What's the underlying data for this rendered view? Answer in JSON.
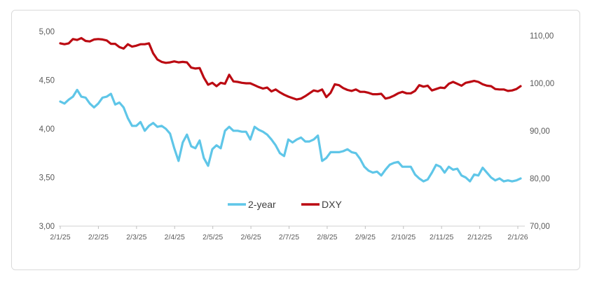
{
  "card": {
    "background": "#ffffff",
    "border_color": "#dadada"
  },
  "legend": {
    "items": [
      {
        "label": "2-year",
        "color": "#5fc6e8"
      },
      {
        "label": "DXY",
        "color": "#bb0a12"
      }
    ]
  },
  "chart_data": {
    "type": "line",
    "title": "",
    "xlabel": "",
    "ylabel_left": "",
    "ylabel_right": "",
    "grid": false,
    "legend_position": "bottom-inside",
    "x_tick_labels": [
      "2/1/25",
      "2/2/25",
      "2/3/25",
      "2/4/25",
      "2/5/25",
      "2/6/25",
      "2/7/25",
      "2/8/25",
      "2/9/25",
      "2/10/25",
      "2/11/25",
      "2/12/25",
      "2/1/26"
    ],
    "left_axis": {
      "min": 3.0,
      "max": 5.0,
      "tick_labels": [
        "3,00",
        "3,50",
        "4,00",
        "4,50",
        "5,00"
      ],
      "tick_values": [
        3.0,
        3.5,
        4.0,
        4.5,
        5.0
      ]
    },
    "right_axis": {
      "min": 70.0,
      "max": 110.0,
      "tick_labels": [
        "70,00",
        "80,00",
        "90,00",
        "100,00",
        "110,00"
      ],
      "tick_values": [
        70,
        80,
        90,
        100,
        110
      ]
    },
    "axis_color": "#d9d9d9",
    "tick_color": "#bfbfbf",
    "label_color": "#595959",
    "series": [
      {
        "name": "2-year",
        "axis": "left",
        "color": "#5fc6e8",
        "values": [
          4.28,
          4.26,
          4.3,
          4.33,
          4.4,
          4.33,
          4.32,
          4.26,
          4.22,
          4.26,
          4.32,
          4.33,
          4.36,
          4.25,
          4.27,
          4.22,
          4.11,
          4.03,
          4.03,
          4.07,
          3.98,
          4.03,
          4.06,
          4.02,
          4.03,
          4.0,
          3.95,
          3.8,
          3.67,
          3.86,
          3.94,
          3.82,
          3.8,
          3.88,
          3.7,
          3.62,
          3.79,
          3.83,
          3.8,
          3.98,
          4.02,
          3.98,
          3.98,
          3.97,
          3.97,
          3.89,
          4.02,
          3.99,
          3.97,
          3.94,
          3.89,
          3.83,
          3.75,
          3.72,
          3.89,
          3.86,
          3.89,
          3.91,
          3.87,
          3.87,
          3.89,
          3.93,
          3.67,
          3.7,
          3.76,
          3.76,
          3.76,
          3.77,
          3.79,
          3.76,
          3.75,
          3.69,
          3.61,
          3.57,
          3.55,
          3.56,
          3.52,
          3.58,
          3.63,
          3.65,
          3.66,
          3.61,
          3.61,
          3.61,
          3.53,
          3.49,
          3.46,
          3.48,
          3.55,
          3.63,
          3.61,
          3.55,
          3.61,
          3.58,
          3.59,
          3.52,
          3.5,
          3.46,
          3.53,
          3.52,
          3.6,
          3.55,
          3.5,
          3.47,
          3.49,
          3.46,
          3.47,
          3.46,
          3.47,
          3.49
        ]
      },
      {
        "name": "DXY",
        "axis": "right",
        "color": "#bb0a12",
        "values": [
          108.4,
          108.2,
          108.4,
          109.3,
          109.1,
          109.5,
          108.9,
          108.8,
          109.2,
          109.3,
          109.2,
          109.0,
          108.3,
          108.3,
          107.6,
          107.3,
          108.2,
          107.7,
          107.9,
          108.2,
          108.2,
          108.4,
          106.3,
          105.0,
          104.5,
          104.3,
          104.4,
          104.6,
          104.4,
          104.5,
          104.4,
          103.3,
          103.1,
          103.2,
          101.2,
          99.7,
          100.1,
          99.4,
          100.1,
          99.9,
          101.8,
          100.4,
          100.3,
          100.1,
          100.0,
          100.0,
          99.6,
          99.2,
          98.9,
          99.1,
          98.3,
          98.7,
          98.1,
          97.6,
          97.2,
          96.9,
          96.6,
          96.8,
          97.3,
          97.9,
          98.5,
          98.3,
          98.7,
          97.1,
          98.0,
          99.8,
          99.6,
          99.0,
          98.6,
          98.4,
          98.7,
          98.2,
          98.2,
          98.0,
          97.7,
          97.7,
          97.8,
          96.8,
          97.0,
          97.4,
          97.9,
          98.2,
          97.9,
          97.9,
          98.4,
          99.6,
          99.3,
          99.5,
          98.5,
          98.8,
          99.1,
          99.0,
          99.9,
          100.3,
          99.9,
          99.5,
          100.1,
          100.3,
          100.5,
          100.3,
          99.8,
          99.5,
          99.4,
          98.8,
          98.7,
          98.7,
          98.4,
          98.5,
          98.8,
          99.4
        ]
      }
    ]
  }
}
